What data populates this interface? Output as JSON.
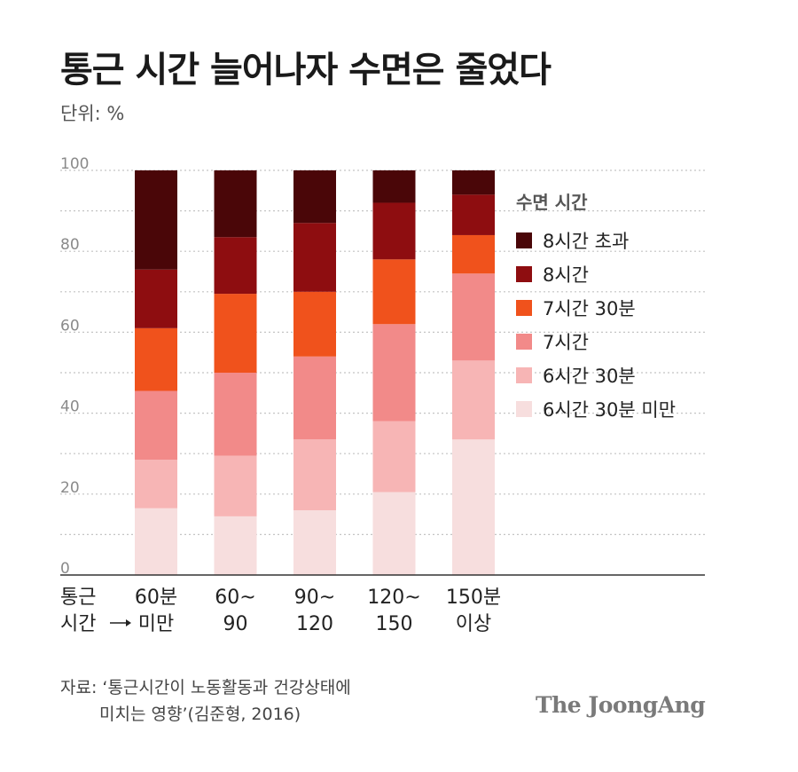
{
  "title": "통근 시간 늘어나자 수면은 줄었다",
  "unit_label": "단위: %",
  "legend": {
    "title": "수면 시간"
  },
  "source": {
    "line1": "자료: ‘통근시간이 노동활동과 건강상태에",
    "line2": "미치는 영향’(김준형, 2016)"
  },
  "brand": "The JoongAng",
  "colors": {
    "over_8h": "#4a0608",
    "8h": "#8e0d10",
    "7h30m": "#f0521c",
    "7h": "#f28a89",
    "6h30m": "#f7b5b5",
    "under_6h30m": "#f7dede"
  },
  "chart_data": {
    "type": "bar",
    "stacked": true,
    "x_title": [
      "통근",
      "시간"
    ],
    "categories": [
      [
        "60분",
        "미만"
      ],
      [
        "60~",
        "90"
      ],
      [
        "90~",
        "120"
      ],
      [
        "120~",
        "150"
      ],
      [
        "150분",
        "이상"
      ]
    ],
    "y_ticks": [
      0,
      20,
      40,
      60,
      80,
      100
    ],
    "ylim": [
      0,
      100
    ],
    "grid": true,
    "legend_position": "right",
    "series": [
      {
        "name": "6시간 30분 미만",
        "color_key": "under_6h30m",
        "values": [
          16.5,
          14.5,
          16,
          20.5,
          33.5
        ]
      },
      {
        "name": "6시간 30분",
        "color_key": "6h30m",
        "values": [
          12,
          15,
          17.5,
          17.5,
          19.5
        ]
      },
      {
        "name": "7시간",
        "color_key": "7h",
        "values": [
          17,
          20.5,
          20.5,
          24,
          21.5
        ]
      },
      {
        "name": "7시간 30분",
        "color_key": "7h30m",
        "values": [
          15.5,
          19.5,
          16,
          16,
          9.5
        ]
      },
      {
        "name": "8시간",
        "color_key": "8h",
        "values": [
          14.5,
          14,
          17,
          14,
          10
        ]
      },
      {
        "name": "8시간 초과",
        "color_key": "over_8h",
        "values": [
          24.5,
          16.5,
          13,
          8,
          6
        ]
      }
    ]
  }
}
